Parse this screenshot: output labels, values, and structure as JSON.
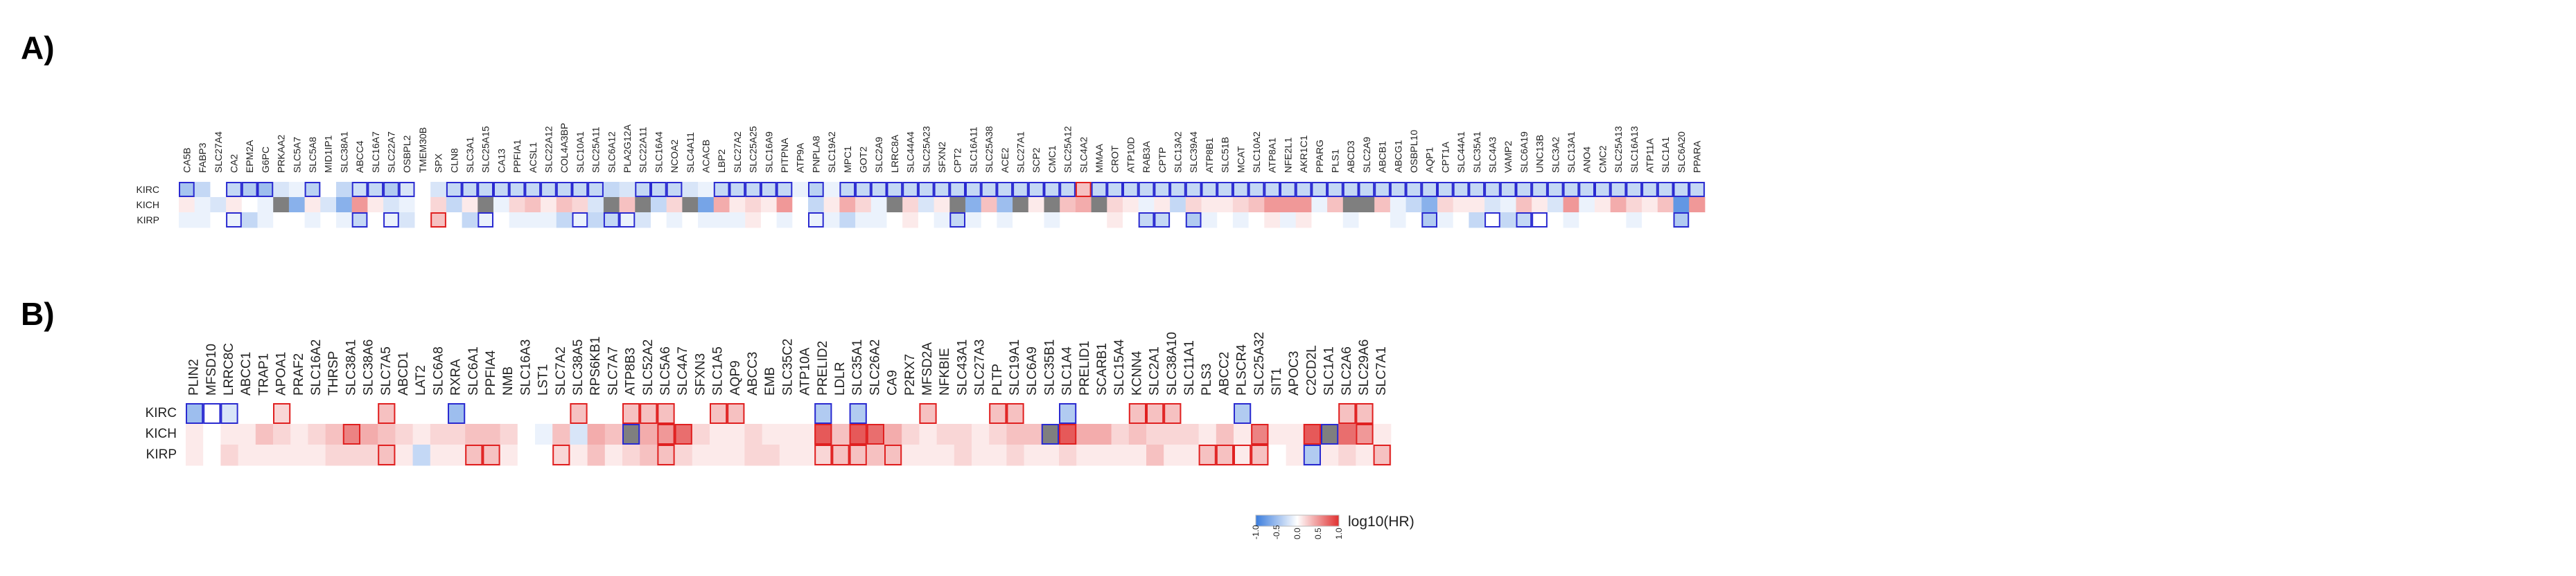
{
  "chart_data": [
    {
      "type": "heatmap",
      "panel_label": "A)",
      "rows": [
        "KIRC",
        "KICH",
        "KIRP"
      ],
      "columns": [
        "CA5B",
        "FABP3",
        "SLC27A4",
        "CA2",
        "EPM2A",
        "G6PC",
        "PRKAA2",
        "SLC5A7",
        "SLC5A8",
        "MID1IP1",
        "SLC38A1",
        "ABCC4",
        "SLC16A7",
        "SLC22A7",
        "OSBPL2",
        "TMEM30B",
        "SPX",
        "CLN8",
        "SLC3A1",
        "SLC25A15",
        "CA13",
        "PPFIA1",
        "ACSL1",
        "SLC22A12",
        "COL4A3BP",
        "SLC10A1",
        "SLC25A11",
        "SLC6A12",
        "PLA2G12A",
        "SLC22A11",
        "SLC16A4",
        "NCOA2",
        "SLC4A11",
        "ACACB",
        "LBP2",
        "SLC27A2",
        "SLC25A25",
        "SLC16A9",
        "PITPNA",
        "ATP9A",
        "PNPLA8",
        "SLC19A2",
        "MPC1",
        "GOT2",
        "SLC2A9",
        "LRRC8A",
        "SLC44A4",
        "SLC25A23",
        "SFXN2",
        "CPT2",
        "SLC16A11",
        "SLC25A38",
        "ACE2",
        "SLC27A1",
        "SCP2",
        "CMC1",
        "SLC25A12",
        "SLC4A2",
        "MMAA",
        "CROT",
        "ATP10D",
        "RAB3A",
        "CPTP",
        "SLC13A2",
        "SLC39A4",
        "ATP8B1",
        "SLC51B",
        "MCAT",
        "SLC10A2",
        "ATP8A1",
        "NFE2L1",
        "AKR1C1",
        "PPARG",
        "PLS1",
        "ABCD3",
        "SLC2A9",
        "ABCB1",
        "ABCG1",
        "OSBPL10",
        "AQP1",
        "CPT1A",
        "SLC44A1",
        "SLC35A1",
        "SLC4A3",
        "VAMP2",
        "SLC6A19",
        "UNC13B",
        "SLC3A2",
        "SLC13A1",
        "ANO4",
        "CMC2",
        "SLC25A13",
        "SLC16A13",
        "ATP11A",
        "SLC1A1",
        "SLC6A20",
        "PPARA"
      ],
      "values": [
        [
          -0.45,
          -0.3,
          0,
          -0.3,
          -0.4,
          -0.5,
          -0.2,
          -0.1,
          -0.35,
          0,
          -0.3,
          -0.25,
          -0.3,
          -0.4,
          -0.2,
          0,
          -0.2,
          -0.3,
          -0.3,
          -0.3,
          -0.3,
          -0.3,
          -0.3,
          -0.3,
          -0.3,
          -0.3,
          -0.3,
          -0.3,
          -0.2,
          -0.3,
          -0.3,
          -0.3,
          -0.2,
          -0.1,
          -0.3,
          -0.3,
          -0.3,
          -0.3,
          -0.3,
          -0.1,
          -0.35,
          -0.1,
          -0.3,
          -0.3,
          -0.3,
          -0.3,
          -0.3,
          -0.3,
          -0.3,
          -0.3,
          -0.3,
          -0.3,
          -0.3,
          -0.3,
          -0.3,
          -0.3,
          -0.3,
          0.3,
          -0.3,
          -0.3,
          -0.3,
          -0.3,
          -0.3,
          -0.3,
          -0.3,
          -0.3,
          -0.3,
          -0.3,
          -0.3,
          -0.3,
          -0.3,
          -0.3,
          -0.3,
          -0.3,
          -0.3,
          -0.3,
          -0.3,
          -0.3,
          -0.3,
          -0.3,
          -0.3,
          -0.3,
          -0.3,
          -0.3,
          -0.3,
          -0.3,
          -0.3,
          -0.3,
          -0.3,
          -0.3,
          -0.3,
          -0.3,
          -0.3,
          -0.3,
          -0.3,
          -0.3,
          -0.3
        ],
        [
          0.1,
          -0.1,
          -0.2,
          0.1,
          0,
          -0.1,
          null,
          -0.6,
          0.1,
          -0.2,
          -0.6,
          0.5,
          0.1,
          -0.2,
          -0.1,
          0,
          0.2,
          -0.3,
          0.1,
          null,
          -0.1,
          0.2,
          0.3,
          0.1,
          0.3,
          0.2,
          -0.2,
          null,
          0.3,
          null,
          -0.3,
          0.2,
          null,
          -0.7,
          0.4,
          0.1,
          0.2,
          0.1,
          0.5,
          0,
          -0.3,
          0.1,
          0.4,
          0.2,
          -0.1,
          null,
          0.2,
          -0.2,
          0.1,
          null,
          -0.6,
          0.3,
          -0.5,
          null,
          0.1,
          null,
          0.3,
          0.4,
          null,
          0.2,
          0.1,
          -0.1,
          0.1,
          -0.3,
          0.2,
          0.1,
          0.1,
          0.2,
          0.3,
          0.5,
          0.5,
          0.5,
          -0.1,
          0.3,
          null,
          null,
          0.3,
          -0.1,
          -0.3,
          -0.6,
          0.2,
          0.1,
          0.1,
          -0.2,
          -0.1,
          0.3,
          0.1,
          -0.2,
          0.5,
          -0.1,
          0.1,
          0.4,
          0.2,
          0.1,
          0.3,
          -0.8,
          0.5
        ],
        [
          -0.1,
          -0.1,
          0,
          -0.1,
          -0.3,
          -0.1,
          0,
          0,
          -0.1,
          0,
          -0.1,
          -0.3,
          0,
          -0.1,
          -0.2,
          0,
          0.3,
          0,
          -0.3,
          -0.1,
          0,
          -0.1,
          -0.1,
          -0.1,
          -0.3,
          -0.1,
          -0.3,
          -0.3,
          -0.1,
          -0.2,
          0,
          -0.1,
          0,
          -0.1,
          -0.1,
          -0.1,
          0.1,
          0,
          -0.1,
          0,
          -0.1,
          -0.1,
          -0.3,
          -0.1,
          -0.1,
          0,
          0.1,
          0,
          -0.1,
          -0.3,
          -0.1,
          0,
          -0.1,
          0,
          0,
          -0.1,
          0,
          0,
          0,
          0.1,
          0,
          -0.3,
          -0.3,
          0,
          -0.4,
          -0.1,
          0,
          -0.1,
          0,
          0.1,
          -0.1,
          0.1,
          0,
          0,
          -0.1,
          0,
          0,
          -0.1,
          0,
          -0.4,
          -0.1,
          0,
          -0.3,
          0,
          -0.3,
          -0.3,
          0,
          0,
          -0.1,
          0,
          0,
          0,
          -0.1,
          0,
          0,
          -0.4,
          0
        ]
      ],
      "boxed": [
        [
          0,
          3,
          4,
          5,
          8,
          11,
          12,
          13,
          14,
          17,
          18,
          19,
          20,
          21,
          22,
          23,
          24,
          25,
          26,
          29,
          30,
          31,
          34,
          35,
          36,
          37,
          38,
          40,
          42,
          43,
          44,
          45,
          46,
          47,
          48,
          49,
          50,
          51,
          52,
          53,
          54,
          55,
          56,
          57,
          58,
          59,
          60,
          61,
          62,
          63,
          64,
          65,
          66,
          67,
          68,
          69,
          70,
          71,
          72,
          73,
          74,
          75,
          76,
          77,
          78,
          79,
          80,
          81,
          82,
          83,
          84,
          85,
          86,
          87,
          88,
          89,
          90,
          91,
          92,
          93,
          94,
          95,
          96
        ],
        [],
        [
          3,
          11,
          13,
          16,
          19,
          25,
          27,
          28,
          40,
          49,
          61,
          62,
          64,
          79,
          83,
          85,
          86,
          95
        ]
      ],
      "scale_min": -1.0,
      "scale_max": 1.0
    },
    {
      "type": "heatmap",
      "panel_label": "B)",
      "rows": [
        "KIRC",
        "KICH",
        "KIRP"
      ],
      "columns": [
        "PLIN2",
        "MFSD10",
        "LRRC8C",
        "ABCC1",
        "TRAP1",
        "APOA1",
        "PRAF2",
        "SLC16A2",
        "THRSP",
        "SLC38A1",
        "SLC38A6",
        "SLC7A5",
        "ABCD1",
        "LAT2",
        "SLC6A8",
        "RXRA",
        "SLC6A1",
        "PPFIA4",
        "NMB",
        "SLC16A3",
        "LST1",
        "SLC7A2",
        "SLC38A5",
        "RPS6KB1",
        "SLC7A7",
        "ATP8B3",
        "SLC52A2",
        "SLC5A6",
        "SLC4A7",
        "SFXN3",
        "SLC1A5",
        "AQP9",
        "ABCC3",
        "EMB",
        "SLC35C2",
        "ATP10A",
        "PRELID2",
        "LDLR",
        "SLC35A1",
        "SLC26A2",
        "CA9",
        "P2RX7",
        "MFSD2A",
        "NFKBIE",
        "SLC43A1",
        "SLC27A3",
        "PLTP",
        "SLC19A1",
        "SLC6A9",
        "SLC35B1",
        "SLC1A4",
        "PRELID1",
        "SCARB1",
        "SLC15A4",
        "KCNN4",
        "SLC2A1",
        "SLC38A10",
        "SLC11A1",
        "PLS3",
        "ABCC2",
        "PLSCR4",
        "SLC25A32",
        "SIT1",
        "APOC3",
        "C2CD2L",
        "SLC1A1",
        "SLC2A6",
        "SLC29A6",
        "SLC7A1"
      ],
      "values": [
        [
          -0.5,
          0,
          -0.2,
          0,
          0,
          0.2,
          0,
          0,
          0,
          0,
          0,
          0.3,
          0,
          0,
          0,
          -0.5,
          0,
          0,
          0,
          0,
          0,
          0,
          0.3,
          0,
          0,
          0.3,
          0.3,
          0.3,
          0,
          0,
          0.3,
          0.3,
          0,
          0,
          0,
          0,
          -0.4,
          0,
          -0.4,
          0,
          0,
          0,
          0.3,
          0,
          0,
          0,
          0.3,
          0.3,
          0,
          0,
          -0.4,
          0,
          0,
          0,
          0.3,
          0.3,
          0.3,
          0,
          0,
          0,
          -0.4,
          0,
          0,
          0,
          0,
          0,
          0.3,
          0.3,
          0
        ],
        [
          0.1,
          0,
          0.1,
          0.1,
          0.3,
          0.2,
          0.1,
          0.2,
          0.3,
          0.6,
          0.4,
          0.3,
          0.2,
          0.1,
          0.2,
          0.2,
          0.3,
          0.3,
          0.2,
          0,
          -0.1,
          0.3,
          -0.2,
          0.4,
          0.3,
          null,
          0.4,
          0.5,
          0.7,
          0.2,
          0.1,
          0.1,
          0.2,
          0.1,
          0.1,
          0.1,
          0.8,
          0.3,
          0.8,
          0.7,
          0.4,
          0.2,
          0.1,
          0.2,
          0.2,
          0.1,
          0.2,
          0.3,
          0.3,
          null,
          0.8,
          0.4,
          0.4,
          0.2,
          0.3,
          0.2,
          0.2,
          0.2,
          0.1,
          0.3,
          0.1,
          0.6,
          0.1,
          0.1,
          0.8,
          null,
          0.7,
          0.5,
          0.1
        ],
        [
          0.1,
          0,
          0.2,
          0.1,
          0.1,
          0.1,
          0.1,
          0.1,
          0.2,
          0.2,
          0.2,
          0.3,
          0.1,
          -0.3,
          0.1,
          0.1,
          0.3,
          0.3,
          0.1,
          0,
          0,
          0.2,
          0.1,
          0.3,
          0.1,
          0.2,
          0.3,
          0.3,
          0.2,
          0.1,
          0.1,
          0.1,
          0.2,
          0.2,
          0.1,
          0.1,
          0.2,
          0.3,
          0.3,
          0.3,
          0.3,
          0.1,
          0.1,
          0.1,
          0.2,
          0.1,
          0.1,
          0.2,
          0.1,
          0.1,
          0.2,
          0.1,
          0.1,
          0.1,
          0.1,
          0.3,
          0.1,
          0.1,
          0.3,
          0.3,
          0.1,
          0.3,
          0,
          0.1,
          -0.4,
          0.1,
          0.2,
          0.1,
          0.3
        ]
      ],
      "boxed": [
        [
          0,
          1,
          2,
          5,
          11,
          15,
          22,
          25,
          26,
          27,
          30,
          31,
          36,
          38,
          42,
          46,
          47,
          50,
          54,
          55,
          56,
          60,
          66,
          67
        ],
        [
          9,
          25,
          27,
          28,
          36,
          38,
          39,
          49,
          50,
          61,
          64,
          65,
          67
        ],
        [
          11,
          16,
          17,
          21,
          27,
          36,
          37,
          38,
          40,
          58,
          59,
          60,
          61,
          64,
          68
        ]
      ],
      "scale_min": -1.0,
      "scale_max": 1.0
    }
  ],
  "legend": {
    "title": "log10(HR)",
    "ticks": [
      "-1.0",
      "-0.5",
      "0.0",
      "0.5",
      "1.0"
    ],
    "colors": {
      "low": "#3b7ddd",
      "mid": "#ffffff",
      "high": "#e03030",
      "na": "#7f7f7f"
    }
  },
  "box_colors": {
    "negative": "#2a2ad0",
    "positive": "#e02020"
  }
}
